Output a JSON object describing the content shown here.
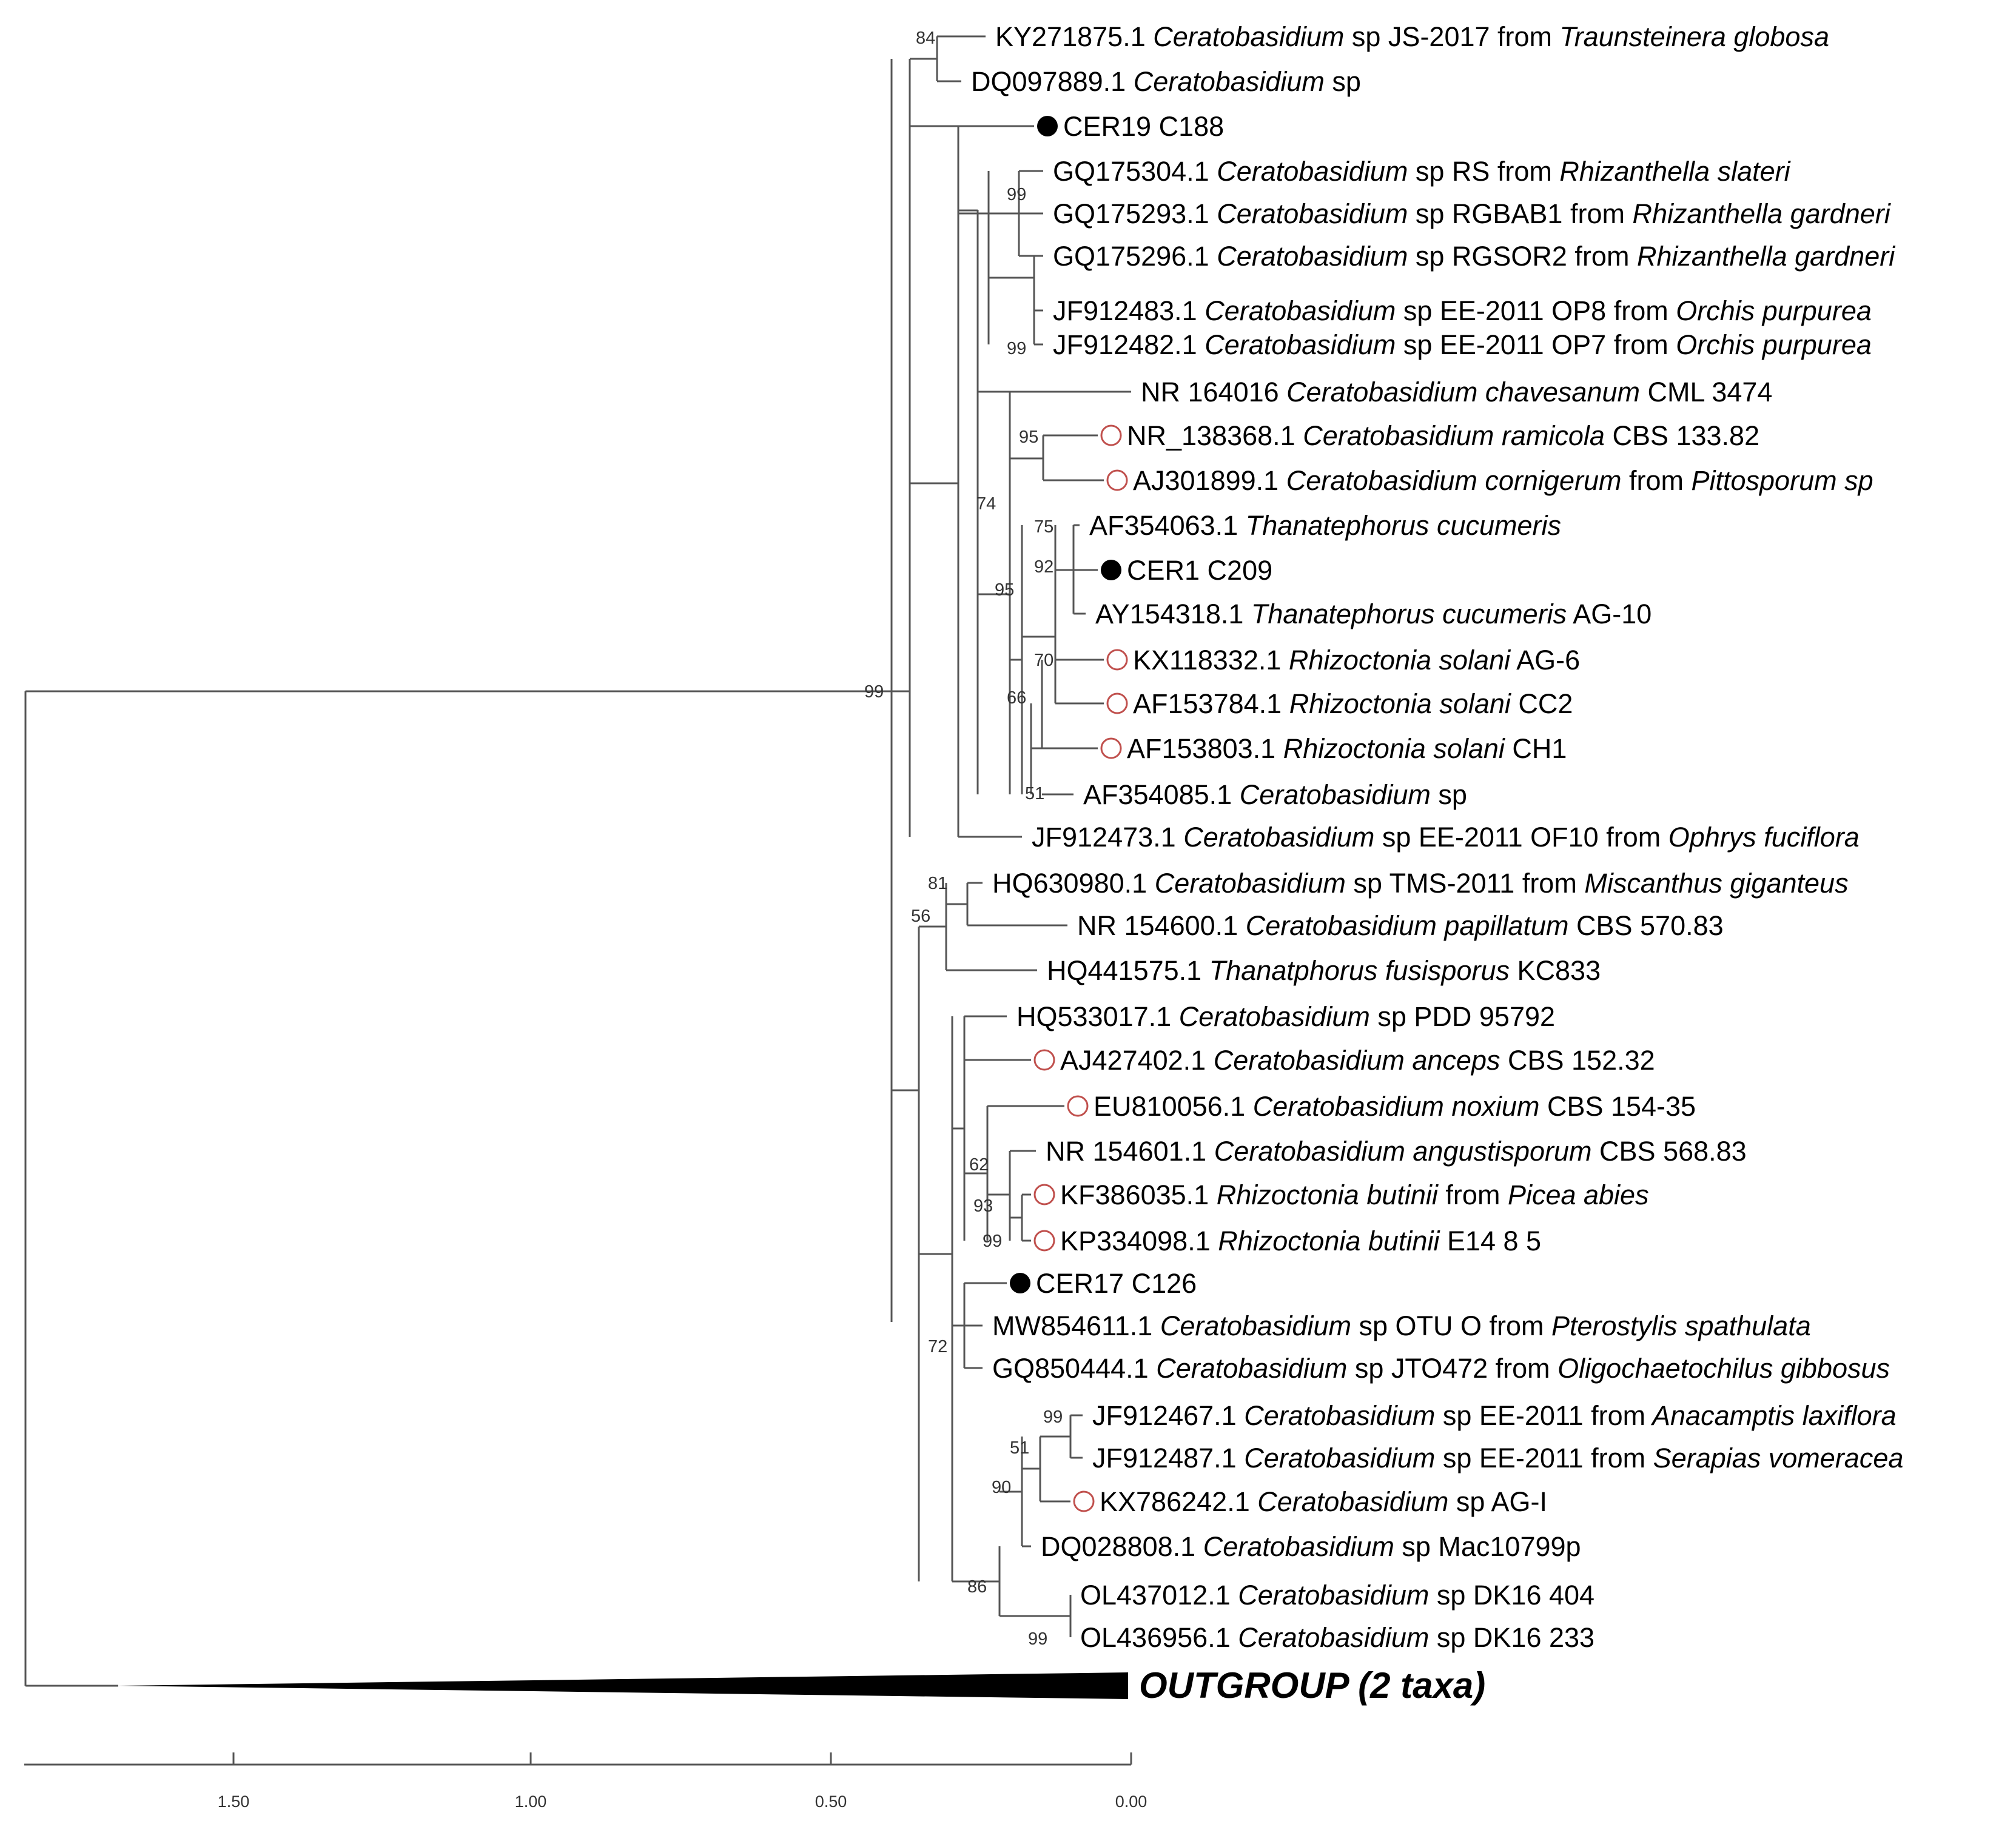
{
  "tree": {
    "taxa": [
      {
        "acc": "KY271875.1",
        "genus": "Ceratobasidium",
        "epithet": "sp",
        "tail": "JS-2017 from",
        "host": "Traunsteinera globosa",
        "marker": "none"
      },
      {
        "acc": "DQ097889.1",
        "genus": "Ceratobasidium",
        "epithet": "sp",
        "tail": "",
        "host": "",
        "marker": "none"
      },
      {
        "acc": "CER19 C188",
        "genus": "",
        "epithet": "",
        "tail": "",
        "host": "",
        "marker": "filled"
      },
      {
        "acc": "GQ175304.1",
        "genus": "Ceratobasidium",
        "epithet": "sp",
        "tail": "RS from",
        "host": "Rhizanthella slateri",
        "marker": "none"
      },
      {
        "acc": "GQ175293.1",
        "genus": "Ceratobasidium",
        "epithet": "sp",
        "tail": "RGBAB1 from",
        "host": "Rhizanthella gardneri",
        "marker": "none"
      },
      {
        "acc": "GQ175296.1",
        "genus": "Ceratobasidium",
        "epithet": "sp",
        "tail": "RGSOR2 from",
        "host": "Rhizanthella gardneri",
        "marker": "none"
      },
      {
        "acc": "JF912483.1",
        "genus": "Ceratobasidium",
        "epithet": "sp",
        "tail": "EE-2011 OP8 from",
        "host": "Orchis purpurea",
        "marker": "none"
      },
      {
        "acc": "JF912482.1",
        "genus": "Ceratobasidium",
        "epithet": "sp",
        "tail": "EE-2011 OP7 from",
        "host": "Orchis purpurea",
        "marker": "none"
      },
      {
        "acc": "NR 164016",
        "genus": "Ceratobasidium",
        "epithet": "chavesanum",
        "tail": "CML 3474",
        "host": "",
        "marker": "none"
      },
      {
        "acc": "NR_138368.1",
        "genus": "Ceratobasidium",
        "epithet": "ramicola",
        "tail": "CBS 133.82",
        "host": "",
        "marker": "open"
      },
      {
        "acc": "AJ301899.1",
        "genus": "Ceratobasidium",
        "epithet": "cornigerum",
        "tail": "from",
        "host": "Pittosporum sp",
        "marker": "open"
      },
      {
        "acc": "AF354063.1",
        "genus": "Thanatephorus",
        "epithet": "cucumeris",
        "tail": "",
        "host": "",
        "marker": "none"
      },
      {
        "acc": "CER1 C209",
        "genus": "",
        "epithet": "",
        "tail": "",
        "host": "",
        "marker": "filled"
      },
      {
        "acc": "AY154318.1",
        "genus": "Thanatephorus",
        "epithet": "cucumeris",
        "tail": "AG-10",
        "host": "",
        "marker": "none"
      },
      {
        "acc": "KX118332.1",
        "genus": "Rhizoctonia",
        "epithet": "solani",
        "tail": "AG-6",
        "host": "",
        "marker": "open"
      },
      {
        "acc": "AF153784.1",
        "genus": "Rhizoctonia",
        "epithet": "solani",
        "tail": "CC2",
        "host": "",
        "marker": "open"
      },
      {
        "acc": "AF153803.1",
        "genus": "Rhizoctonia",
        "epithet": "solani",
        "tail": "CH1",
        "host": "",
        "marker": "open"
      },
      {
        "acc": "AF354085.1",
        "genus": "Ceratobasidium",
        "epithet": "sp",
        "tail": "",
        "host": "",
        "marker": "none"
      },
      {
        "acc": "JF912473.1",
        "genus": "Ceratobasidium",
        "epithet": "sp",
        "tail": "EE-2011 OF10 from",
        "host": "Ophrys fuciflora",
        "marker": "none"
      },
      {
        "acc": "HQ630980.1",
        "genus": "Ceratobasidium",
        "epithet": "sp",
        "tail": "TMS-2011 from",
        "host": "Miscanthus giganteus",
        "marker": "none"
      },
      {
        "acc": "NR 154600.1",
        "genus": "Ceratobasidium",
        "epithet": "papillatum",
        "tail": "CBS 570.83",
        "host": "",
        "marker": "none"
      },
      {
        "acc": "HQ441575.1",
        "genus": "Thanatphorus",
        "epithet": "fusisporus",
        "tail": "KC833",
        "host": "",
        "marker": "none"
      },
      {
        "acc": "HQ533017.1",
        "genus": "Ceratobasidium",
        "epithet": "sp",
        "tail": "PDD 95792",
        "host": "",
        "marker": "none"
      },
      {
        "acc": "AJ427402.1",
        "genus": "Ceratobasidium",
        "epithet": "anceps",
        "tail": "CBS 152.32",
        "host": "",
        "marker": "open"
      },
      {
        "acc": "EU810056.1",
        "genus": "Ceratobasidium",
        "epithet": "noxium",
        "tail": "CBS 154-35",
        "host": "",
        "marker": "open"
      },
      {
        "acc": "NR 154601.1",
        "genus": "Ceratobasidium",
        "epithet": "angustisporum",
        "tail": "CBS 568.83",
        "host": "",
        "marker": "none"
      },
      {
        "acc": "KF386035.1",
        "genus": "Rhizoctonia",
        "epithet": "butinii",
        "tail": "from",
        "host": "Picea abies",
        "marker": "open"
      },
      {
        "acc": "KP334098.1",
        "genus": "Rhizoctonia",
        "epithet": "butinii",
        "tail": "E14 8 5",
        "host": "",
        "marker": "open"
      },
      {
        "acc": "CER17 C126",
        "genus": "",
        "epithet": "",
        "tail": "",
        "host": "",
        "marker": "filled"
      },
      {
        "acc": "MW854611.1",
        "genus": "Ceratobasidium",
        "epithet": "sp",
        "tail": "OTU O from",
        "host": "Pterostylis spathulata",
        "marker": "none"
      },
      {
        "acc": "GQ850444.1",
        "genus": "Ceratobasidium",
        "epithet": "sp",
        "tail": "JTO472 from",
        "host": "Oligochaetochilus gibbosus",
        "marker": "none"
      },
      {
        "acc": "JF912467.1",
        "genus": "Ceratobasidium",
        "epithet": "sp",
        "tail": "EE-2011 from",
        "host": "Anacamptis laxiflora",
        "marker": "none"
      },
      {
        "acc": "JF912487.1",
        "genus": "Ceratobasidium",
        "epithet": "sp",
        "tail": "EE-2011 from",
        "host": "Serapias vomeracea",
        "marker": "none"
      },
      {
        "acc": "KX786242.1",
        "genus": "Ceratobasidium",
        "epithet": "sp",
        "tail": "AG-I",
        "host": "",
        "marker": "open"
      },
      {
        "acc": "DQ028808.1",
        "genus": "Ceratobasidium",
        "epithet": "sp",
        "tail": "Mac10799p",
        "host": "",
        "marker": "none"
      },
      {
        "acc": "OL437012.1",
        "genus": "Ceratobasidium",
        "epithet": "sp",
        "tail": "DK16 404",
        "host": "",
        "marker": "none"
      },
      {
        "acc": "OL436956.1",
        "genus": "Ceratobasidium",
        "epithet": "sp",
        "tail": "DK16 233",
        "host": "",
        "marker": "none"
      }
    ],
    "bootstrap": [
      "84",
      "99",
      "99",
      "95",
      "74",
      "75",
      "92",
      "95",
      "70",
      "66",
      "51",
      "99",
      "81",
      "56",
      "62",
      "93",
      "99",
      "72",
      "99",
      "51",
      "90",
      "86",
      "99"
    ],
    "outgroup_label": "OUTGROUP (2 taxa)",
    "scale_ticks": [
      "1.50",
      "1.00",
      "0.50",
      "0.00"
    ],
    "colors": {
      "open_marker": "#c0504d",
      "filled_marker": "#000000",
      "branch": "#555555"
    }
  }
}
